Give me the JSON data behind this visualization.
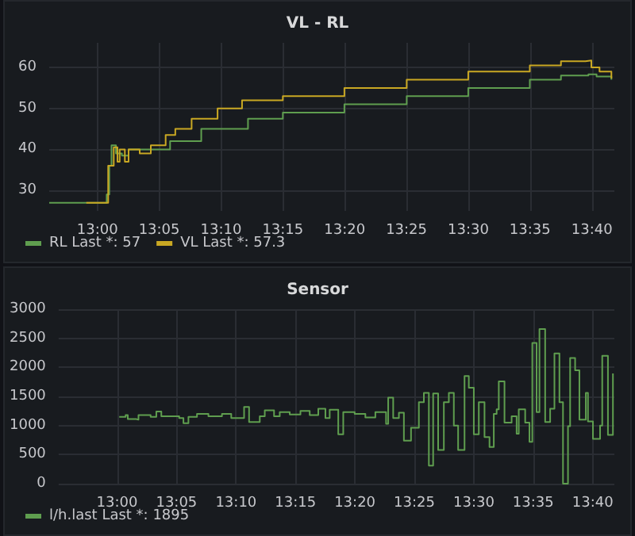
{
  "chart_data": [
    {
      "type": "step",
      "title": "VL - RL",
      "xlim": [
        12.935,
        13.697
      ],
      "ylim": [
        25,
        66
      ],
      "xticks": [
        {
          "value": 13,
          "label": "13:00"
        },
        {
          "value": 13.0833,
          "label": "13:05"
        },
        {
          "value": 13.1667,
          "label": "13:10"
        },
        {
          "value": 13.25,
          "label": "13:15"
        },
        {
          "value": 13.3333,
          "label": "13:20"
        },
        {
          "value": 13.4167,
          "label": "13:25"
        },
        {
          "value": 13.5,
          "label": "13:30"
        },
        {
          "value": 13.5833,
          "label": "13:35"
        },
        {
          "value": 13.6667,
          "label": "13:40"
        }
      ],
      "yticks": [
        30,
        40,
        50,
        60
      ],
      "grid": true,
      "legend": "bottom left",
      "marker": "none",
      "line_style": "solid",
      "series": [
        {
          "name": "RL Last *: 57",
          "color": "#5f9e4f",
          "x": [
            12.935,
            13.0125,
            13.016,
            13.019,
            13.025,
            13.033,
            13.042,
            13.057,
            13.098,
            13.14,
            13.203,
            13.25,
            13.333,
            13.417,
            13.5,
            13.583,
            13.625,
            13.662,
            13.673,
            13.693
          ],
          "values": [
            27,
            29,
            36,
            41,
            39,
            38.5,
            40,
            40,
            42,
            45,
            47.5,
            49,
            51,
            53,
            55,
            57,
            58,
            58.3,
            57.8,
            57
          ]
        },
        {
          "name": "VL Last *: 57.3",
          "color": "#c9a823",
          "x": [
            12.985,
            13.0145,
            13.022,
            13.027,
            13.03,
            13.037,
            13.042,
            13.057,
            13.072,
            13.092,
            13.105,
            13.127,
            13.162,
            13.195,
            13.25,
            13.333,
            13.417,
            13.5,
            13.583,
            13.625,
            13.658,
            13.666,
            13.677,
            13.693
          ],
          "values": [
            27,
            36,
            40.5,
            37,
            40,
            37,
            40,
            39,
            41,
            43.5,
            45,
            47.5,
            50,
            52,
            53,
            55,
            57,
            59,
            60.5,
            61.5,
            61.7,
            60,
            59,
            57.3
          ]
        }
      ]
    },
    {
      "type": "step",
      "title": "Sensor",
      "xlim": [
        12.918,
        13.697
      ],
      "ylim": [
        0,
        3000
      ],
      "xticks": [
        {
          "value": 13,
          "label": "13:00"
        },
        {
          "value": 13.0833,
          "label": "13:05"
        },
        {
          "value": 13.1667,
          "label": "13:10"
        },
        {
          "value": 13.25,
          "label": "13:15"
        },
        {
          "value": 13.3333,
          "label": "13:20"
        },
        {
          "value": 13.4167,
          "label": "13:25"
        },
        {
          "value": 13.5,
          "label": "13:30"
        },
        {
          "value": 13.5833,
          "label": "13:35"
        },
        {
          "value": 13.6667,
          "label": "13:40"
        }
      ],
      "yticks": [
        0,
        500,
        1000,
        1500,
        2000,
        2500,
        3000
      ],
      "grid": true,
      "legend": "bottom left",
      "marker": "none",
      "line_style": "solid",
      "series": [
        {
          "name": "l/h.last Last *: 1895",
          "color": "#5f9e4f",
          "x": [
            13.003,
            13.012,
            13.015,
            13.027,
            13.03,
            13.047,
            13.055,
            13.062,
            13.087,
            13.093,
            13.1,
            13.112,
            13.128,
            13.147,
            13.16,
            13.178,
            13.185,
            13.2,
            13.207,
            13.22,
            13.228,
            13.242,
            13.257,
            13.27,
            13.282,
            13.292,
            13.298,
            13.31,
            13.317,
            13.333,
            13.348,
            13.362,
            13.377,
            13.38,
            13.387,
            13.395,
            13.402,
            13.412,
            13.423,
            13.43,
            13.437,
            13.443,
            13.45,
            13.458,
            13.465,
            13.472,
            13.478,
            13.487,
            13.493,
            13.5,
            13.507,
            13.515,
            13.522,
            13.528,
            13.532,
            13.535,
            13.543,
            13.553,
            13.56,
            13.563,
            13.572,
            13.578,
            13.582,
            13.588,
            13.592,
            13.6,
            13.607,
            13.613,
            13.62,
            13.625,
            13.632,
            13.635,
            13.642,
            13.648,
            13.657,
            13.66,
            13.667,
            13.677,
            13.68,
            13.688,
            13.695
          ],
          "values": [
            1150,
            1180,
            1110,
            1100,
            1180,
            1150,
            1240,
            1160,
            1130,
            1040,
            1150,
            1200,
            1160,
            1200,
            1130,
            1320,
            1060,
            1160,
            1260,
            1160,
            1230,
            1190,
            1250,
            1180,
            1290,
            1130,
            1270,
            850,
            1230,
            1200,
            1140,
            1230,
            1030,
            1480,
            1130,
            1220,
            740,
            960,
            1400,
            1560,
            310,
            1550,
            580,
            1400,
            1560,
            1000,
            580,
            1850,
            1650,
            850,
            1400,
            800,
            630,
            1200,
            1280,
            1760,
            1050,
            1160,
            860,
            1280,
            1050,
            720,
            2420,
            1230,
            2660,
            1060,
            1290,
            2240,
            1400,
            0,
            990,
            2160,
            1950,
            1100,
            1560,
            1070,
            770,
            1000,
            2200,
            840,
            1895
          ]
        }
      ]
    }
  ]
}
